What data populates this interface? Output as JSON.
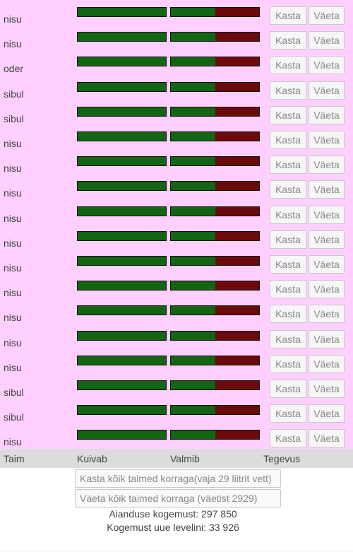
{
  "plants": [
    {
      "name": "nisu",
      "dry_fill": 1.0,
      "ready_fill": 0.5
    },
    {
      "name": "nisu",
      "dry_fill": 1.0,
      "ready_fill": 0.5
    },
    {
      "name": "oder",
      "dry_fill": 1.0,
      "ready_fill": 0.5
    },
    {
      "name": "sibul",
      "dry_fill": 1.0,
      "ready_fill": 0.5
    },
    {
      "name": "sibul",
      "dry_fill": 1.0,
      "ready_fill": 0.5
    },
    {
      "name": "nisu",
      "dry_fill": 1.0,
      "ready_fill": 0.5
    },
    {
      "name": "nisu",
      "dry_fill": 1.0,
      "ready_fill": 0.5
    },
    {
      "name": "nisu",
      "dry_fill": 1.0,
      "ready_fill": 0.5
    },
    {
      "name": "nisu",
      "dry_fill": 1.0,
      "ready_fill": 0.5
    },
    {
      "name": "nisu",
      "dry_fill": 1.0,
      "ready_fill": 0.5
    },
    {
      "name": "nisu",
      "dry_fill": 1.0,
      "ready_fill": 0.5
    },
    {
      "name": "nisu",
      "dry_fill": 1.0,
      "ready_fill": 0.5
    },
    {
      "name": "nisu",
      "dry_fill": 1.0,
      "ready_fill": 0.5
    },
    {
      "name": "nisu",
      "dry_fill": 1.0,
      "ready_fill": 0.5
    },
    {
      "name": "nisu",
      "dry_fill": 1.0,
      "ready_fill": 0.5
    },
    {
      "name": "sibul",
      "dry_fill": 1.0,
      "ready_fill": 0.5
    },
    {
      "name": "sibul",
      "dry_fill": 1.0,
      "ready_fill": 0.5
    },
    {
      "name": "nisu",
      "dry_fill": 1.0,
      "ready_fill": 0.5
    }
  ],
  "row_buttons": {
    "water_label": "Kasta",
    "fertilize_label": "Väeta"
  },
  "columns": {
    "plant": "Taim",
    "dries": "Kuivab",
    "ready": "Valmib",
    "actions": "Tegevus"
  },
  "actions": {
    "water_all": "Kasta kõik taimed korraga(vaja 29 liitrit vett)",
    "fertilize_all": "Väeta kõik taimed korraga (väetist 2929)"
  },
  "stats": {
    "experience": "Aianduse kogemust: 297 850",
    "next_level": "Kogemust uue levelini: 33 926"
  },
  "colors": {
    "background": "#ffd0ff",
    "bar_green": "#136413",
    "bar_red": "#6b0a0a",
    "header": "#dcdcdc"
  }
}
